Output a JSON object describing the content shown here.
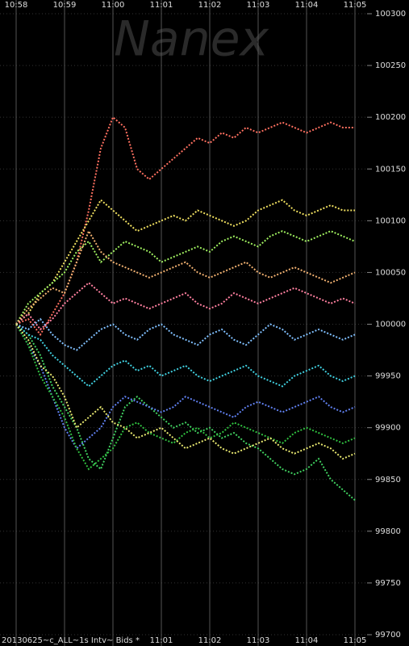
{
  "chart_data": {
    "type": "line",
    "watermark": "Nanex",
    "footer": "20130625~c_ALL~1s Intv~ Bids *",
    "xlim": [
      0,
      7
    ],
    "xticks": [
      {
        "value": 0,
        "label": "10:58"
      },
      {
        "value": 1,
        "label": "10:59"
      },
      {
        "value": 2,
        "label": "11:00"
      },
      {
        "value": 3,
        "label": "11:01"
      },
      {
        "value": 4,
        "label": "11:02"
      },
      {
        "value": 5,
        "label": "11:03"
      },
      {
        "value": 6,
        "label": "11:04"
      },
      {
        "value": 7,
        "label": "11:05"
      }
    ],
    "ylim": [
      99700,
      100300
    ],
    "yticks": [
      99700,
      99750,
      99800,
      99850,
      99900,
      99950,
      100000,
      100050,
      100100,
      100150,
      100200,
      100250,
      100300
    ],
    "grid": true,
    "x": [
      0,
      0.25,
      0.5,
      0.75,
      1,
      1.25,
      1.5,
      1.75,
      2,
      2.25,
      2.5,
      2.75,
      3,
      3.25,
      3.5,
      3.75,
      4,
      4.25,
      4.5,
      4.75,
      5,
      5.25,
      5.5,
      5.75,
      6,
      6.25,
      6.5,
      6.75,
      7
    ],
    "series": [
      {
        "color": "#ff7060",
        "values": [
          100000,
          100005,
          99990,
          100010,
          100030,
          100060,
          100110,
          100170,
          100200,
          100190,
          100150,
          100140,
          100150,
          100160,
          100170,
          100180,
          100175,
          100185,
          100180,
          100190,
          100185,
          100190,
          100195,
          100190,
          100185,
          100190,
          100195,
          100190,
          100190
        ]
      },
      {
        "color": "#40d060",
        "values": [
          100000,
          99990,
          99970,
          99940,
          99920,
          99900,
          99870,
          99860,
          99890,
          99920,
          99930,
          99920,
          99910,
          99900,
          99905,
          99895,
          99900,
          99890,
          99895,
          99885,
          99880,
          99870,
          99860,
          99855,
          99860,
          99870,
          99850,
          99840,
          99830
        ]
      },
      {
        "color": "#f0e060",
        "values": [
          100000,
          100010,
          100030,
          100040,
          100060,
          100080,
          100100,
          100120,
          100110,
          100100,
          100090,
          100095,
          100100,
          100105,
          100100,
          100110,
          100105,
          100100,
          100095,
          100100,
          100110,
          100115,
          100120,
          100110,
          100105,
          100110,
          100115,
          100110,
          100110
        ]
      },
      {
        "color": "#40d0e0",
        "values": [
          100000,
          99990,
          99985,
          99970,
          99960,
          99950,
          99940,
          99950,
          99960,
          99965,
          99955,
          99960,
          99950,
          99955,
          99960,
          99950,
          99945,
          99950,
          99955,
          99960,
          99950,
          99945,
          99940,
          99950,
          99955,
          99960,
          99950,
          99945,
          99950
        ]
      },
      {
        "color": "#a0f060",
        "values": [
          100000,
          100020,
          100030,
          100040,
          100050,
          100070,
          100080,
          100060,
          100070,
          100080,
          100075,
          100070,
          100060,
          100065,
          100070,
          100075,
          100070,
          100080,
          100085,
          100080,
          100075,
          100085,
          100090,
          100085,
          100080,
          100085,
          100090,
          100085,
          100080
        ]
      },
      {
        "color": "#6080f0",
        "values": [
          100000,
          99980,
          99960,
          99930,
          99900,
          99880,
          99890,
          99900,
          99920,
          99930,
          99925,
          99920,
          99915,
          99920,
          99930,
          99925,
          99920,
          99915,
          99910,
          99920,
          99925,
          99920,
          99915,
          99920,
          99925,
          99930,
          99920,
          99915,
          99920
        ]
      },
      {
        "color": "#ff80a0",
        "values": [
          100000,
          100010,
          99995,
          100005,
          100020,
          100030,
          100040,
          100030,
          100020,
          100025,
          100020,
          100015,
          100020,
          100025,
          100030,
          100020,
          100015,
          100020,
          100030,
          100025,
          100020,
          100025,
          100030,
          100035,
          100030,
          100025,
          100020,
          100025,
          100020
        ]
      },
      {
        "color": "#30c040",
        "values": [
          100000,
          99980,
          99950,
          99930,
          99910,
          99880,
          99860,
          99870,
          99880,
          99900,
          99905,
          99895,
          99890,
          99885,
          99895,
          99900,
          99890,
          99895,
          99905,
          99900,
          99895,
          99890,
          99885,
          99895,
          99900,
          99895,
          99890,
          99885,
          99890
        ]
      },
      {
        "color": "#f0b070",
        "values": [
          100000,
          100015,
          100025,
          100035,
          100030,
          100060,
          100090,
          100070,
          100060,
          100055,
          100050,
          100045,
          100050,
          100055,
          100060,
          100050,
          100045,
          100050,
          100055,
          100060,
          100050,
          100045,
          100050,
          100055,
          100050,
          100045,
          100040,
          100045,
          100050
        ]
      },
      {
        "color": "#80c0ff",
        "values": [
          100000,
          99995,
          100005,
          99990,
          99980,
          99975,
          99985,
          99995,
          100000,
          99990,
          99985,
          99995,
          100000,
          99990,
          99985,
          99980,
          99990,
          99995,
          99985,
          99980,
          99990,
          100000,
          99995,
          99985,
          99990,
          99995,
          99990,
          99985,
          99990
        ]
      },
      {
        "color": "#e8e870",
        "values": [
          100000,
          99985,
          99960,
          99950,
          99930,
          99900,
          99910,
          99920,
          99905,
          99900,
          99890,
          99895,
          99900,
          99890,
          99880,
          99885,
          99890,
          99880,
          99875,
          99880,
          99885,
          99890,
          99880,
          99875,
          99880,
          99885,
          99880,
          99870,
          99875
        ]
      }
    ]
  }
}
